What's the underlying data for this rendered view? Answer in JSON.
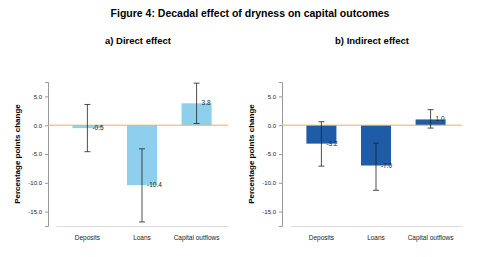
{
  "title": "Figure 4: Decadal effect of dryness on capital outcomes",
  "chart_data": [
    {
      "type": "bar",
      "title": "a) Direct effect",
      "y_label": "Percentage points change",
      "categories": [
        "Deposits",
        "Loans",
        "Capital outflows"
      ],
      "values": [
        -0.5,
        -10.4,
        3.8
      ],
      "value_labels": [
        "-0.5",
        "-10.4",
        "3.8"
      ],
      "error_low": [
        -4.6,
        -16.8,
        0.3
      ],
      "error_high": [
        3.6,
        -4.1,
        7.3
      ],
      "color": "#8ecfee",
      "ylim": [
        -17.5,
        7.5
      ],
      "yticks": [
        {
          "value": -15,
          "label": "-15.0"
        },
        {
          "value": -10,
          "label": "-10.0"
        },
        {
          "value": -5,
          "label": "-5.0"
        },
        {
          "value": 0,
          "label": "0.0"
        },
        {
          "value": 5,
          "label": "5.0"
        }
      ],
      "data_labels": true
    },
    {
      "type": "bar",
      "title": "b) Indirect effect",
      "y_label": "Percentage points change",
      "categories": [
        "Deposits",
        "Loans",
        "Capital outflows"
      ],
      "values": [
        -3.2,
        -7.0,
        1.0
      ],
      "value_labels": [
        "-3.2",
        "-7.0",
        "1.0"
      ],
      "error_low": [
        -7.1,
        -11.3,
        -0.5
      ],
      "error_high": [
        0.6,
        -3.1,
        2.7
      ],
      "color": "#1f5ca8",
      "ylim": [
        -17.5,
        7.5
      ],
      "yticks": [
        {
          "value": -15,
          "label": "-15.0"
        },
        {
          "value": -10,
          "label": "-10.0"
        },
        {
          "value": -5,
          "label": "-5.0"
        },
        {
          "value": 0,
          "label": "0.0"
        },
        {
          "value": 5,
          "label": "5.0"
        }
      ],
      "data_labels": true
    }
  ]
}
